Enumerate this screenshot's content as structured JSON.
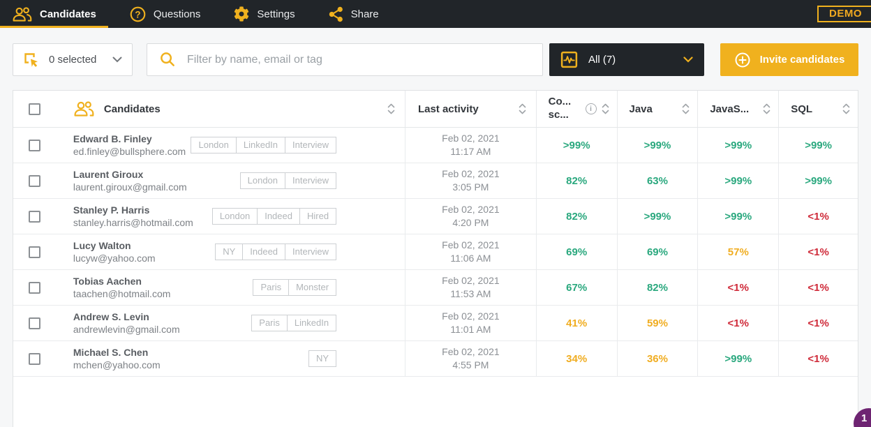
{
  "nav": {
    "items": [
      {
        "label": "Candidates",
        "icon": "people-icon",
        "active": true
      },
      {
        "label": "Questions",
        "icon": "question-icon",
        "active": false
      },
      {
        "label": "Settings",
        "icon": "gear-icon",
        "active": false
      },
      {
        "label": "Share",
        "icon": "share-icon",
        "active": false
      }
    ],
    "demo_badge": "DEMO"
  },
  "toolbar": {
    "selected_dropdown": {
      "label": "0 selected",
      "icon": "marquee-select-icon"
    },
    "search": {
      "placeholder": "Filter by name, email or tag",
      "value": "",
      "icon": "search-icon"
    },
    "filter_dropdown": {
      "label": "All (7)",
      "icon": "pulse-icon"
    },
    "invite_button": {
      "label": "Invite candidates",
      "icon": "plus-circle-icon"
    }
  },
  "table": {
    "columns": {
      "candidates": "Candidates",
      "last_activity": "Last activity",
      "coding_score_line1": "Co...",
      "coding_score_line2": "sc...",
      "java": "Java",
      "javascript": "JavaS...",
      "sql": "SQL"
    },
    "rows": [
      {
        "name": "Edward B. Finley",
        "email": "ed.finley@bullsphere.com",
        "tags": [
          "London",
          "LinkedIn",
          "Interview"
        ],
        "date": "Feb 02, 2021",
        "time": "11:17 AM",
        "scores": [
          {
            "value": ">99%",
            "color": "green"
          },
          {
            "value": ">99%",
            "color": "green"
          },
          {
            "value": ">99%",
            "color": "green"
          },
          {
            "value": ">99%",
            "color": "green"
          }
        ]
      },
      {
        "name": "Laurent Giroux",
        "email": "laurent.giroux@gmail.com",
        "tags": [
          "London",
          "Interview"
        ],
        "date": "Feb 02, 2021",
        "time": "3:05 PM",
        "scores": [
          {
            "value": "82%",
            "color": "green"
          },
          {
            "value": "63%",
            "color": "green"
          },
          {
            "value": ">99%",
            "color": "green"
          },
          {
            "value": ">99%",
            "color": "green"
          }
        ]
      },
      {
        "name": "Stanley P. Harris",
        "email": "stanley.harris@hotmail.com",
        "tags": [
          "London",
          "Indeed",
          "Hired"
        ],
        "date": "Feb 02, 2021",
        "time": "4:20 PM",
        "scores": [
          {
            "value": "82%",
            "color": "green"
          },
          {
            "value": ">99%",
            "color": "green"
          },
          {
            "value": ">99%",
            "color": "green"
          },
          {
            "value": "<1%",
            "color": "red"
          }
        ]
      },
      {
        "name": "Lucy Walton",
        "email": "lucyw@yahoo.com",
        "tags": [
          "NY",
          "Indeed",
          "Interview"
        ],
        "date": "Feb 02, 2021",
        "time": "11:06 AM",
        "scores": [
          {
            "value": "69%",
            "color": "green"
          },
          {
            "value": "69%",
            "color": "green"
          },
          {
            "value": "57%",
            "color": "orange"
          },
          {
            "value": "<1%",
            "color": "red"
          }
        ]
      },
      {
        "name": "Tobias Aachen",
        "email": "taachen@hotmail.com",
        "tags": [
          "Paris",
          "Monster"
        ],
        "date": "Feb 02, 2021",
        "time": "11:53 AM",
        "scores": [
          {
            "value": "67%",
            "color": "green"
          },
          {
            "value": "82%",
            "color": "green"
          },
          {
            "value": "<1%",
            "color": "red"
          },
          {
            "value": "<1%",
            "color": "red"
          }
        ]
      },
      {
        "name": "Andrew S. Levin",
        "email": "andrewlevin@gmail.com",
        "tags": [
          "Paris",
          "LinkedIn"
        ],
        "date": "Feb 02, 2021",
        "time": "11:01 AM",
        "scores": [
          {
            "value": "41%",
            "color": "orange"
          },
          {
            "value": "59%",
            "color": "orange"
          },
          {
            "value": "<1%",
            "color": "red"
          },
          {
            "value": "<1%",
            "color": "red"
          }
        ]
      },
      {
        "name": "Michael S. Chen",
        "email": "mchen@yahoo.com",
        "tags": [
          "NY"
        ],
        "date": "Feb 02, 2021",
        "time": "4:55 PM",
        "scores": [
          {
            "value": "34%",
            "color": "orange"
          },
          {
            "value": "36%",
            "color": "orange"
          },
          {
            "value": ">99%",
            "color": "green"
          },
          {
            "value": "<1%",
            "color": "red"
          }
        ]
      }
    ]
  },
  "pagination": {
    "current_page": "1"
  },
  "colors": {
    "accent_yellow": "#f0b11e",
    "nav_dark": "#212529",
    "score_high": "#2aa87e",
    "score_mid": "#f0ad21",
    "score_low": "#cf2b3a",
    "pagination_purple": "#6e2472"
  }
}
